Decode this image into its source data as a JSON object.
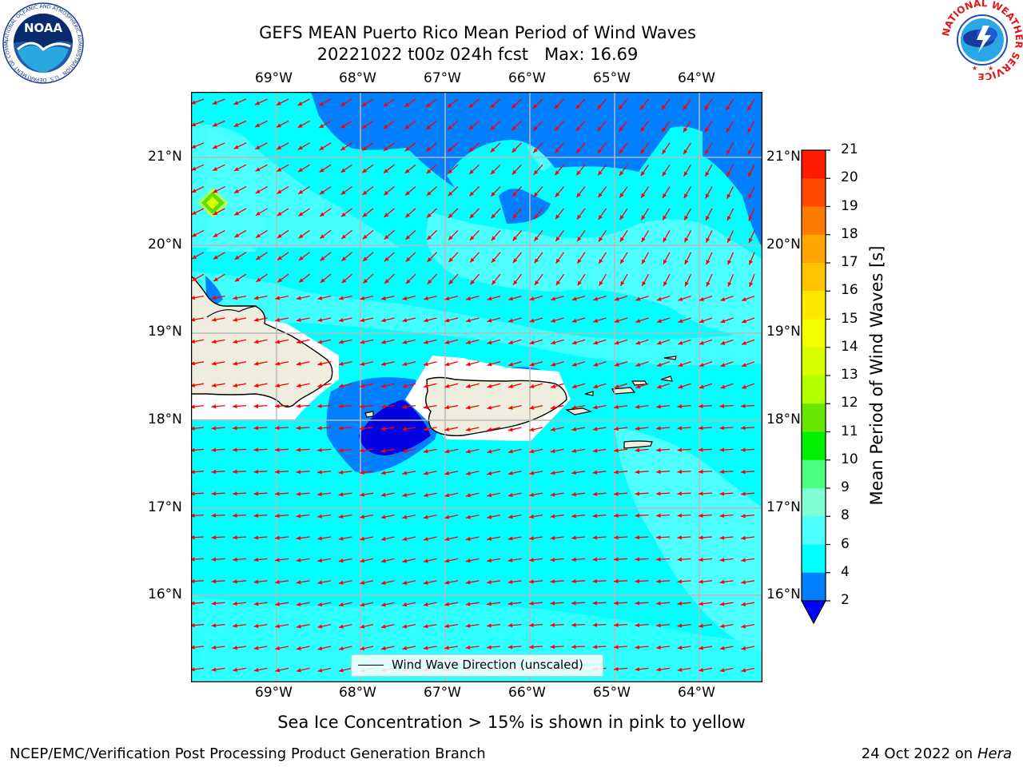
{
  "header": {
    "title_line1": "GEFS MEAN Puerto Rico Mean Period of Wind Waves",
    "title_line2": "20221022 t00z 024h fcst   Max: 16.69"
  },
  "map": {
    "lon_labels": [
      "69°W",
      "68°W",
      "67°W",
      "66°W",
      "65°W",
      "64°W"
    ],
    "lat_labels": [
      "21°N",
      "20°N",
      "19°N",
      "18°N",
      "17°N",
      "16°N"
    ],
    "legend_label": "Wind Wave Direction (unscaled)",
    "colors": {
      "ocean_main": "#00ffff",
      "ocean_light": "#4dffff",
      "ocean_dark": "#0080ff",
      "ocean_deep": "#0000e0",
      "land": "#efedde",
      "arrow": "#ff0000"
    }
  },
  "colorbar": {
    "title": "Mean Period of Wind Waves [s]",
    "ticks": [
      "21",
      "20",
      "19",
      "18",
      "17",
      "16",
      "15",
      "14",
      "13",
      "12",
      "11",
      "10",
      "9",
      "8",
      "6",
      "4",
      "2"
    ],
    "colors": [
      "#ff1a00",
      "#ff4a00",
      "#ff7a00",
      "#ffa500",
      "#ffc400",
      "#ffe800",
      "#f2ff00",
      "#d8ff00",
      "#b2ff00",
      "#66e600",
      "#00f000",
      "#4dff80",
      "#80ffd4",
      "#4dffff",
      "#00ffff",
      "#0080ff"
    ],
    "extend_color": "#0000ff"
  },
  "footer": {
    "caption": "Sea Ice Concentration > 15% is shown in pink to yellow",
    "credit_left": "NCEP/EMC/Verification Post Processing Product Generation Branch",
    "credit_right_date": "24 Oct 2022 on ",
    "credit_right_host": "Hera"
  },
  "logos": {
    "noaa_text": "NOAA",
    "noaa_ring_text": "NATIONAL OCEANIC AND ATMOSPHERIC ADMINISTRATION · U.S. DEPARTMENT OF COMMERCE ·",
    "nws_ring_text": "NATIONAL WEATHER SERVICE"
  }
}
